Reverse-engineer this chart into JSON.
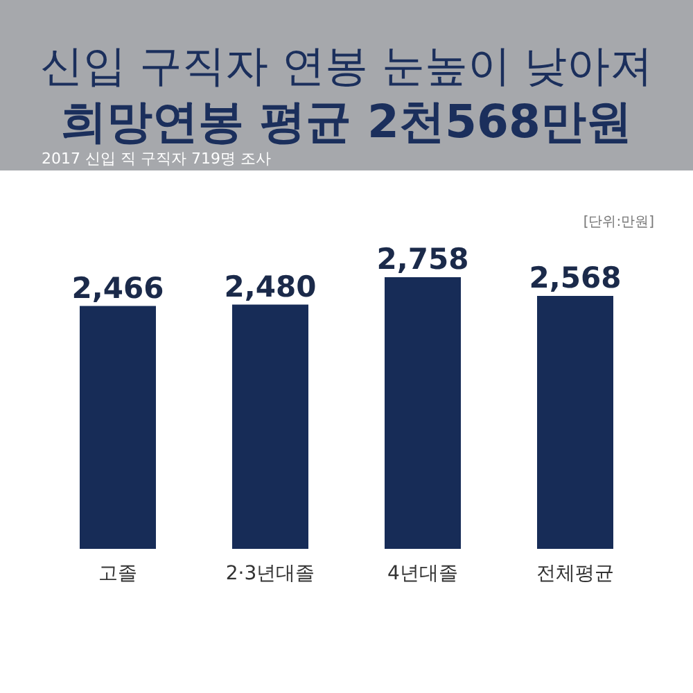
{
  "chart_data": {
    "type": "bar",
    "title": "신입 구직자 연봉 눈높이 낮아져\n희망연봉  평균 2천568만원",
    "subtitle": "2017 신입 직 구직자 719명 조사",
    "annotations": [
      "[단위:만원]"
    ],
    "categories": [
      "고졸",
      "2·3년대졸",
      "4년대졸",
      "전체평균"
    ],
    "values": [
      2466,
      2480,
      2758,
      2568
    ],
    "color": "#172c57",
    "value_labels": [
      "2,466",
      "2,480",
      "2,758",
      "2,568"
    ]
  }
}
